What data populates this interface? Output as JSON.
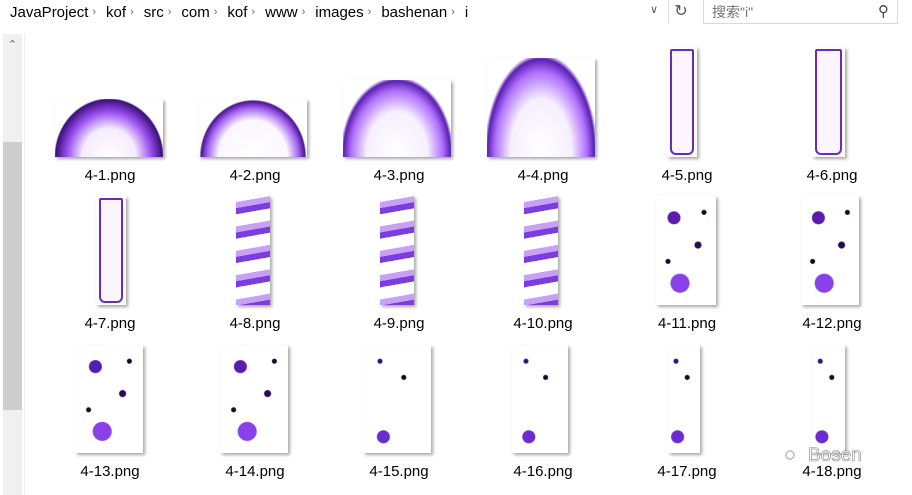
{
  "breadcrumb": [
    "JavaProject",
    "kof",
    "src",
    "com",
    "kof",
    "www",
    "images",
    "bashenan",
    "i"
  ],
  "search": {
    "placeholder": "搜索\"i\""
  },
  "icons": {
    "dropdown": "chevron-down-icon",
    "refresh": "refresh-icon",
    "search": "search-icon",
    "scroll_up": "chevron-up-icon"
  },
  "files": [
    {
      "name": "4-1.png",
      "style": "burst"
    },
    {
      "name": "4-2.png",
      "style": "burst2"
    },
    {
      "name": "4-3.png",
      "style": "spike"
    },
    {
      "name": "4-4.png",
      "style": "spike"
    },
    {
      "name": "4-5.png",
      "style": "tube"
    },
    {
      "name": "4-6.png",
      "style": "tube"
    },
    {
      "name": "4-7.png",
      "style": "tube"
    },
    {
      "name": "4-8.png",
      "style": "flame"
    },
    {
      "name": "4-9.png",
      "style": "flame"
    },
    {
      "name": "4-10.png",
      "style": "flame"
    },
    {
      "name": "4-11.png",
      "style": "speck"
    },
    {
      "name": "4-12.png",
      "style": "speck"
    },
    {
      "name": "4-13.png",
      "style": "speck"
    },
    {
      "name": "4-14.png",
      "style": "speck"
    },
    {
      "name": "4-15.png",
      "style": "speck2"
    },
    {
      "name": "4-16.png",
      "style": "speck2"
    },
    {
      "name": "4-17.png",
      "style": "speck2"
    },
    {
      "name": "4-18.png",
      "style": "speck2"
    }
  ],
  "watermark": "Bosen"
}
